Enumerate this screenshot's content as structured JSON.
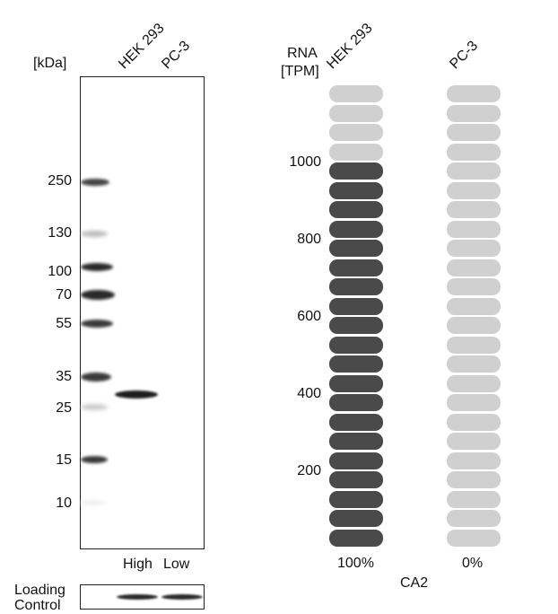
{
  "blot": {
    "unit_label": "[kDa]",
    "lanes": [
      "HEK 293",
      "PC-3"
    ],
    "markers": [
      "250",
      "130",
      "100",
      "70",
      "55",
      "35",
      "25",
      "15",
      "10"
    ],
    "expression": [
      "High",
      "Low"
    ],
    "loading_control": [
      "Loading",
      "Control"
    ]
  },
  "rna": {
    "axis_label": [
      "RNA",
      "[TPM]"
    ],
    "cell_lines": [
      "HEK 293",
      "PC-3"
    ],
    "ticks": [
      "1000",
      "800",
      "600",
      "400",
      "200"
    ],
    "percent": [
      "100%",
      "0%"
    ],
    "gene": "CA2",
    "levels": [
      1.0,
      0.0
    ],
    "colors": {
      "filled": "#4a4a4a",
      "empty": "#d0d0d0"
    }
  }
}
